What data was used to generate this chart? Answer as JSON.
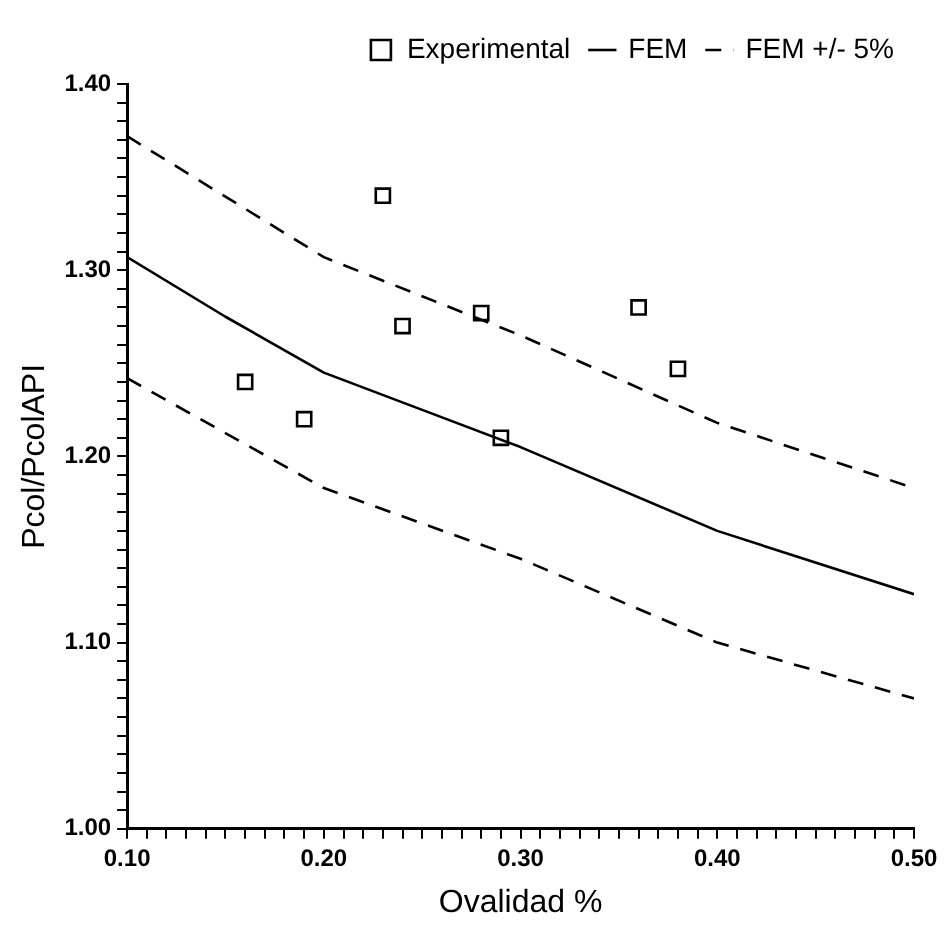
{
  "chart_data": {
    "type": "line",
    "xlabel": "Ovalidad %",
    "ylabel": "Pcol/PcolAPI",
    "xlim": [
      0.1,
      0.5
    ],
    "ylim": [
      1.0,
      1.4
    ],
    "xticks": [
      {
        "value": 0.1,
        "label": "0.10"
      },
      {
        "value": 0.11,
        "label": null
      },
      {
        "value": 0.12,
        "label": null
      },
      {
        "value": 0.13,
        "label": null
      },
      {
        "value": 0.14,
        "label": null
      },
      {
        "value": 0.15,
        "label": null
      },
      {
        "value": 0.16,
        "label": null
      },
      {
        "value": 0.17,
        "label": null
      },
      {
        "value": 0.18,
        "label": null
      },
      {
        "value": 0.19,
        "label": null
      },
      {
        "value": 0.2,
        "label": "0.20"
      },
      {
        "value": 0.21,
        "label": null
      },
      {
        "value": 0.22,
        "label": null
      },
      {
        "value": 0.23,
        "label": null
      },
      {
        "value": 0.24,
        "label": null
      },
      {
        "value": 0.25,
        "label": null
      },
      {
        "value": 0.26,
        "label": null
      },
      {
        "value": 0.27,
        "label": null
      },
      {
        "value": 0.28,
        "label": null
      },
      {
        "value": 0.29,
        "label": null
      },
      {
        "value": 0.3,
        "label": "0.30"
      },
      {
        "value": 0.31,
        "label": null
      },
      {
        "value": 0.32,
        "label": null
      },
      {
        "value": 0.33,
        "label": null
      },
      {
        "value": 0.34,
        "label": null
      },
      {
        "value": 0.35,
        "label": null
      },
      {
        "value": 0.36,
        "label": null
      },
      {
        "value": 0.37,
        "label": null
      },
      {
        "value": 0.38,
        "label": null
      },
      {
        "value": 0.39,
        "label": null
      },
      {
        "value": 0.4,
        "label": "0.40"
      },
      {
        "value": 0.41,
        "label": null
      },
      {
        "value": 0.42,
        "label": null
      },
      {
        "value": 0.43,
        "label": null
      },
      {
        "value": 0.44,
        "label": null
      },
      {
        "value": 0.45,
        "label": null
      },
      {
        "value": 0.46,
        "label": null
      },
      {
        "value": 0.47,
        "label": null
      },
      {
        "value": 0.48,
        "label": null
      },
      {
        "value": 0.49,
        "label": null
      },
      {
        "value": 0.5,
        "label": "0.50"
      }
    ],
    "yticks": [
      {
        "value": 1.0,
        "label": "1.00"
      },
      {
        "value": 1.01,
        "label": null
      },
      {
        "value": 1.02,
        "label": null
      },
      {
        "value": 1.03,
        "label": null
      },
      {
        "value": 1.04,
        "label": null
      },
      {
        "value": 1.05,
        "label": null
      },
      {
        "value": 1.06,
        "label": null
      },
      {
        "value": 1.07,
        "label": null
      },
      {
        "value": 1.08,
        "label": null
      },
      {
        "value": 1.09,
        "label": null
      },
      {
        "value": 1.1,
        "label": "1.10"
      },
      {
        "value": 1.11,
        "label": null
      },
      {
        "value": 1.12,
        "label": null
      },
      {
        "value": 1.13,
        "label": null
      },
      {
        "value": 1.14,
        "label": null
      },
      {
        "value": 1.15,
        "label": null
      },
      {
        "value": 1.16,
        "label": null
      },
      {
        "value": 1.17,
        "label": null
      },
      {
        "value": 1.18,
        "label": null
      },
      {
        "value": 1.19,
        "label": null
      },
      {
        "value": 1.2,
        "label": "1.20"
      },
      {
        "value": 1.21,
        "label": null
      },
      {
        "value": 1.22,
        "label": null
      },
      {
        "value": 1.23,
        "label": null
      },
      {
        "value": 1.24,
        "label": null
      },
      {
        "value": 1.25,
        "label": null
      },
      {
        "value": 1.26,
        "label": null
      },
      {
        "value": 1.27,
        "label": null
      },
      {
        "value": 1.28,
        "label": null
      },
      {
        "value": 1.29,
        "label": null
      },
      {
        "value": 1.3,
        "label": "1.30"
      },
      {
        "value": 1.31,
        "label": null
      },
      {
        "value": 1.32,
        "label": null
      },
      {
        "value": 1.33,
        "label": null
      },
      {
        "value": 1.34,
        "label": null
      },
      {
        "value": 1.35,
        "label": null
      },
      {
        "value": 1.36,
        "label": null
      },
      {
        "value": 1.37,
        "label": null
      },
      {
        "value": 1.38,
        "label": null
      },
      {
        "value": 1.39,
        "label": null
      },
      {
        "value": 1.4,
        "label": "1.40"
      }
    ],
    "grid": false,
    "legend": "top right",
    "series": [
      {
        "name": "Experimental",
        "type": "scatter",
        "marker": "square",
        "color": "#000000",
        "x": [
          0.16,
          0.19,
          0.23,
          0.24,
          0.28,
          0.29,
          0.36,
          0.38
        ],
        "values": [
          1.24,
          1.22,
          1.34,
          1.27,
          1.277,
          1.21,
          1.28,
          1.247
        ]
      },
      {
        "name": "FEM",
        "type": "line",
        "line_style": "solid",
        "marker": "none",
        "color": "#000000",
        "x": [
          0.1,
          0.15,
          0.2,
          0.25,
          0.3,
          0.4,
          0.5
        ],
        "values": [
          1.307,
          1.275,
          1.245,
          1.225,
          1.205,
          1.16,
          1.126
        ]
      },
      {
        "name": "FEM +/- 5%",
        "type": "line",
        "line_style": "dashed",
        "marker": "none",
        "color": "#000000",
        "x": [
          0.1,
          0.2,
          0.3,
          0.4,
          0.5
        ],
        "values": [
          1.372,
          1.307,
          1.265,
          1.218,
          1.183
        ]
      },
      {
        "type": "line",
        "line_style": "dashed",
        "marker": "none",
        "color": "#000000",
        "x": [
          0.1,
          0.2,
          0.3,
          0.4,
          0.5
        ],
        "values": [
          1.242,
          1.183,
          1.145,
          1.1,
          1.07
        ]
      }
    ]
  }
}
